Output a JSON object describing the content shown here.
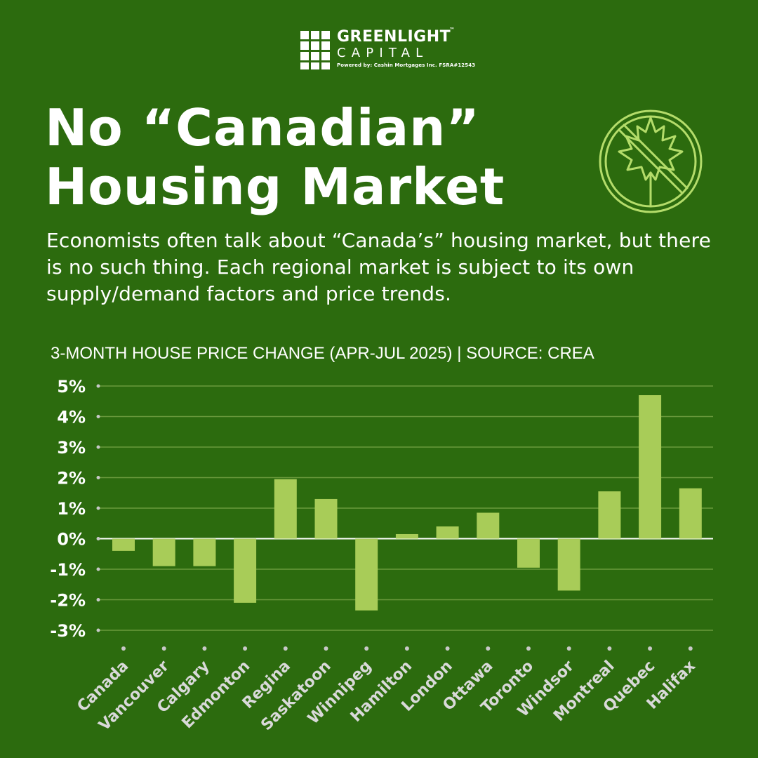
{
  "brand": {
    "name": "GREENLIGHT",
    "trademark": "™",
    "subname": "CAPITAL",
    "powered_by": "Powered by: Cashin Mortgages Inc. FSRA#12543"
  },
  "headline": {
    "line1": "No “Canadian”",
    "line2": "Housing Market"
  },
  "intro": "Economists often talk about “Canada’s” housing market, but there is no such thing. Each regional market is subject to its own supply/demand factors and price trends.",
  "icon": "no-maple-leaf-icon",
  "colors": {
    "background": "#2c6b0e",
    "bar": "#a8cc58",
    "grid": "#6a9a3c",
    "zero_line": "#ffffff",
    "icon": "#b4dc6a"
  },
  "chart_data": {
    "type": "bar",
    "title": "3-MONTH HOUSE PRICE CHANGE (APR-JUL 2025) | SOURCE: CREA",
    "categories": [
      "Canada",
      "Vancouver",
      "Calgary",
      "Edmonton",
      "Regina",
      "Saskatoon",
      "Winnipeg",
      "Hamilton",
      "London",
      "Ottawa",
      "Toronto",
      "Windsor",
      "Montreal",
      "Quebec",
      "Halifax"
    ],
    "values": [
      -0.4,
      -0.9,
      -0.9,
      -2.1,
      1.95,
      1.3,
      -2.35,
      0.15,
      0.4,
      0.85,
      -0.95,
      -1.7,
      1.55,
      4.7,
      1.65
    ],
    "unit": "%",
    "ylim": [
      -3,
      5
    ],
    "yticks": [
      5,
      4,
      3,
      2,
      1,
      0,
      -1,
      -2,
      -3
    ],
    "ytick_labels": [
      "5%",
      "4%",
      "3%",
      "2%",
      "1%",
      "0%",
      "-1%",
      "-2%",
      "-3%"
    ],
    "grid": true,
    "legend": "none"
  }
}
